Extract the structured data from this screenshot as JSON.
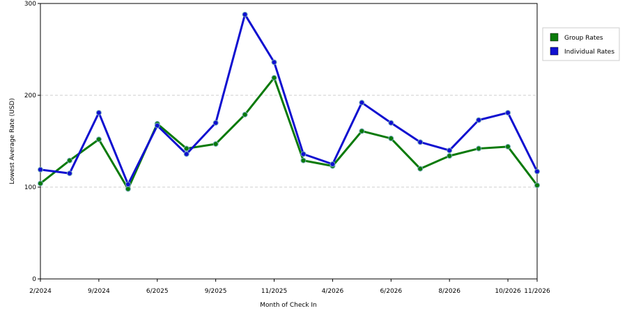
{
  "chart_data": {
    "type": "line",
    "x_label": "Month of Check In",
    "y_label": "Lowest Average Rate (USD)",
    "categories": [
      "2/2024",
      null,
      "9/2024",
      null,
      "6/2025",
      null,
      "9/2025",
      null,
      "11/2025",
      null,
      "4/2026",
      null,
      "6/2026",
      null,
      "8/2026",
      null,
      "10/2026",
      "11/2026"
    ],
    "series": [
      {
        "name": "Group Rates",
        "color": "#0a7a0a",
        "values": [
          104,
          129,
          152,
          98,
          169,
          142,
          147,
          179,
          219,
          129,
          123,
          161,
          153,
          120,
          134,
          142,
          144,
          102
        ]
      },
      {
        "name": "Individual Rates",
        "color": "#1010d0",
        "values": [
          119,
          115,
          181,
          103,
          167,
          136,
          170,
          288,
          236,
          136,
          125,
          192,
          170,
          149,
          140,
          173,
          181,
          117
        ]
      }
    ],
    "ylim": [
      0,
      300
    ],
    "yticks": [
      0,
      100,
      200,
      300
    ],
    "grid": true,
    "legend": "right"
  }
}
